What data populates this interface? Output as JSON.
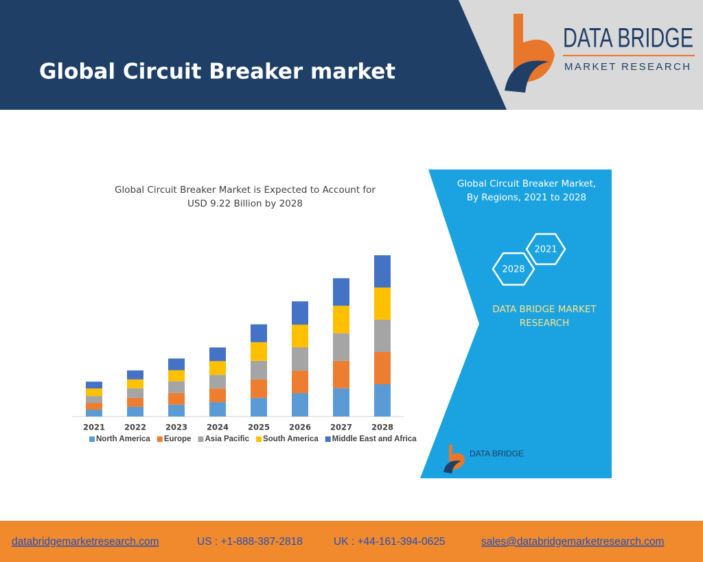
{
  "header": {
    "title": "Global Circuit Breaker market",
    "logo": {
      "name": "DATA BRIDGE",
      "tagline": "MARKET RESEARCH"
    }
  },
  "chart_data": {
    "type": "bar",
    "stacked": true,
    "title": [
      "Global Circuit Breaker Market is Expected to Account for",
      "USD 9.22 Billion by 2028"
    ],
    "categories": [
      "2021",
      "2022",
      "2023",
      "2024",
      "2025",
      "2026",
      "2027",
      "2028"
    ],
    "series": [
      {
        "name": "North America",
        "color": "#5b9bd5",
        "values": [
          0.39,
          0.55,
          0.67,
          0.82,
          1.06,
          1.33,
          1.61,
          1.84
        ]
      },
      {
        "name": "Europe",
        "color": "#ed7d31",
        "values": [
          0.39,
          0.51,
          0.67,
          0.78,
          1.06,
          1.29,
          1.57,
          1.84
        ]
      },
      {
        "name": "Asia Pacific",
        "color": "#a5a5a5",
        "values": [
          0.39,
          0.55,
          0.67,
          0.78,
          1.06,
          1.33,
          1.57,
          1.84
        ]
      },
      {
        "name": "South America",
        "color": "#ffc000",
        "values": [
          0.43,
          0.51,
          0.63,
          0.78,
          1.06,
          1.29,
          1.57,
          1.84
        ]
      },
      {
        "name": "Middle East and Africa",
        "color": "#4472c4",
        "values": [
          0.39,
          0.51,
          0.67,
          0.78,
          1.02,
          1.33,
          1.57,
          1.84
        ]
      }
    ],
    "legend": "bottom"
  },
  "side_panel": {
    "title": [
      "Global Circuit Breaker Market,",
      "By Regions, 2021 to 2028"
    ],
    "badges": [
      "2021",
      "2028"
    ],
    "brand": [
      "DATA BRIDGE MARKET",
      "RESEARCH"
    ],
    "logo": "DATA BRIDGE"
  },
  "footer": {
    "website": "databridgemarketresearch.com",
    "us": "US : +1-888-387-2818",
    "uk": "UK : +44-161-394-0625",
    "email": "sales@databridgemarketresearch.com"
  }
}
